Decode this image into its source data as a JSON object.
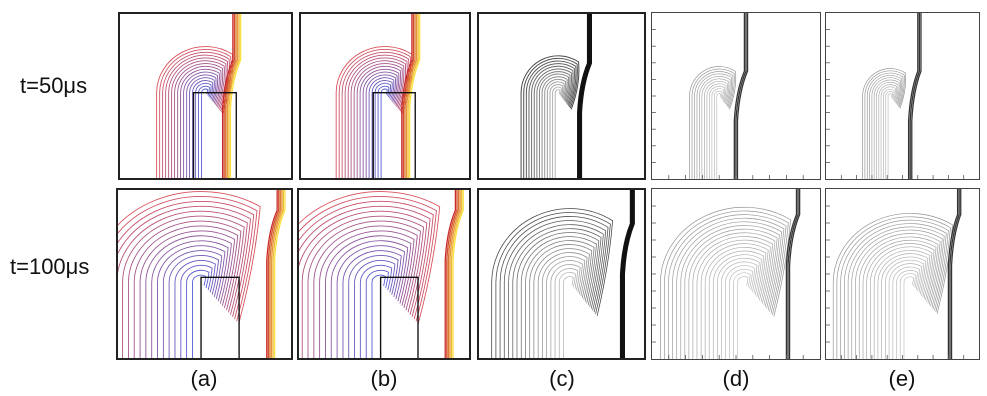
{
  "figure": {
    "rows": [
      {
        "label": "t=50μs"
      },
      {
        "label": "t=100μs"
      }
    ],
    "columns": [
      {
        "label": "(a)",
        "style": "colored"
      },
      {
        "label": "(b)",
        "style": "colored"
      },
      {
        "label": "(c)",
        "style": "dark"
      },
      {
        "label": "(d)",
        "style": "light"
      },
      {
        "label": "(e)",
        "style": "light"
      }
    ]
  }
}
